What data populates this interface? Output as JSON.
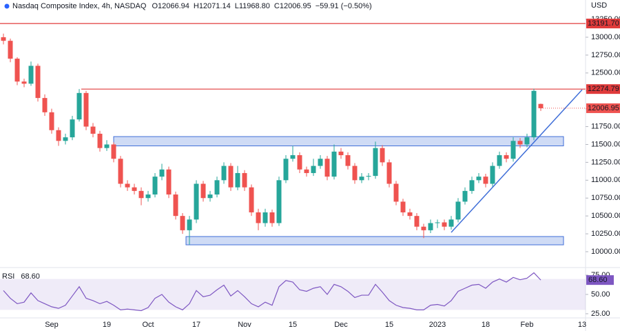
{
  "chart_data": [
    {
      "type": "candlestick",
      "title": "Nasdaq Composite Index, 4h, NASDAQ",
      "legend_values": [
        "O12066.94",
        "H12071.14",
        "L11968.80",
        "C12006.95",
        "−59.91 (−0.50%)"
      ],
      "currency": "USD",
      "categories": [
        null,
        null,
        null,
        null,
        null,
        null,
        null,
        "Sep",
        null,
        null,
        null,
        null,
        null,
        null,
        null,
        "19",
        null,
        null,
        null,
        null,
        null,
        "Oct",
        null,
        null,
        null,
        null,
        null,
        null,
        "17",
        null,
        null,
        null,
        null,
        null,
        null,
        "Nov",
        null,
        null,
        null,
        null,
        null,
        null,
        "15",
        null,
        null,
        null,
        null,
        null,
        null,
        "Dec",
        null,
        null,
        null,
        null,
        null,
        null,
        "15",
        null,
        null,
        null,
        null,
        null,
        null,
        "2023",
        null,
        null,
        null,
        null,
        null,
        null,
        "18",
        null,
        null,
        null,
        null,
        null,
        "Feb",
        null,
        null,
        null,
        null,
        null,
        null,
        null,
        "13"
      ],
      "open": [
        13000,
        12950,
        12700,
        12380,
        12350,
        12600,
        12150,
        11950,
        11700,
        11550,
        11600,
        11850,
        12220,
        11750,
        11650,
        11450,
        11500,
        11300,
        10950,
        10900,
        10850,
        10750,
        10800,
        11050,
        11150,
        10800,
        10500,
        10300,
        10450,
        10950,
        10750,
        10800,
        11000,
        11200,
        10900,
        11100,
        10900,
        10550,
        10400,
        10550,
        10400,
        11000,
        11300,
        11350,
        11150,
        11100,
        11200,
        11300,
        11050,
        11400,
        11350,
        11200,
        11000,
        11050,
        11060,
        11450,
        11250,
        10950,
        10700,
        10550,
        10500,
        10350,
        10300,
        10400,
        10410,
        10350,
        10450,
        10700,
        10850,
        11000,
        11050,
        10950,
        11200,
        11350,
        11300,
        11550,
        11500,
        11600,
        12066.94,
        null,
        null,
        null,
        null,
        null,
        null
      ],
      "high": [
        13050,
        12980,
        12720,
        12420,
        12660,
        12630,
        12200,
        12000,
        11740,
        11650,
        11900,
        12275,
        12250,
        11800,
        11690,
        11560,
        11530,
        11340,
        11000,
        10950,
        10900,
        10850,
        11100,
        11230,
        11190,
        10840,
        10540,
        10500,
        11000,
        10990,
        10850,
        11050,
        11250,
        11240,
        11200,
        11140,
        10940,
        10600,
        10600,
        10590,
        11050,
        11350,
        11480,
        11390,
        11190,
        11300,
        11350,
        11340,
        11500,
        11450,
        11390,
        11240,
        11100,
        11100,
        11540,
        11490,
        11290,
        10990,
        10740,
        10600,
        10540,
        10390,
        10450,
        10450,
        10450,
        10500,
        10750,
        10900,
        11050,
        11100,
        11090,
        11250,
        11400,
        11390,
        11600,
        11590,
        11650,
        12280,
        12071.14,
        null,
        null,
        null,
        null,
        null,
        null
      ],
      "low": [
        12900,
        12650,
        12330,
        12300,
        12320,
        12100,
        11900,
        11650,
        11480,
        11500,
        11560,
        11820,
        11700,
        11600,
        11400,
        11410,
        11250,
        10900,
        10850,
        10800,
        10650,
        10700,
        10760,
        11000,
        10750,
        10450,
        10250,
        10100,
        10400,
        10700,
        10700,
        10760,
        10950,
        10850,
        10860,
        10850,
        10500,
        10300,
        10350,
        10350,
        10360,
        10960,
        11260,
        11100,
        11050,
        11060,
        11160,
        11000,
        11010,
        11300,
        11150,
        10950,
        10960,
        11000,
        11020,
        11200,
        10900,
        10650,
        10500,
        10450,
        10300,
        10190,
        10260,
        10330,
        10300,
        10310,
        10410,
        10660,
        10810,
        10960,
        10900,
        10910,
        11160,
        11250,
        11260,
        11450,
        11460,
        11560,
        11968.8,
        null,
        null,
        null,
        null,
        null,
        null
      ],
      "close": [
        12950,
        12700,
        12380,
        12350,
        12600,
        12150,
        11950,
        11700,
        11550,
        11600,
        11850,
        12220,
        11750,
        11650,
        11450,
        11500,
        11300,
        10950,
        10900,
        10850,
        10750,
        10800,
        11050,
        11150,
        10800,
        10500,
        10300,
        10450,
        10950,
        10750,
        10800,
        11000,
        11200,
        10900,
        11100,
        10900,
        10550,
        10400,
        10550,
        10400,
        11000,
        11300,
        11350,
        11150,
        11100,
        11200,
        11300,
        11050,
        11400,
        11350,
        11200,
        11000,
        11050,
        11060,
        11450,
        11250,
        10950,
        10700,
        10550,
        10500,
        10350,
        10300,
        10400,
        10410,
        10350,
        10450,
        10700,
        10850,
        11000,
        11050,
        10950,
        11200,
        11350,
        11300,
        11550,
        11500,
        11600,
        12250,
        12006.95,
        null,
        null,
        null,
        null,
        null,
        null
      ],
      "up_color": "#26a69a",
      "down_color": "#ef5350",
      "ylim": [
        9807,
        13376
      ],
      "yticks": [
        {
          "value": 10000,
          "label": "10000.00"
        },
        {
          "value": 10250,
          "label": "10250.00"
        },
        {
          "value": 10500,
          "label": "10500.00"
        },
        {
          "value": 10750,
          "label": "10750.00"
        },
        {
          "value": 11000,
          "label": "11000.00"
        },
        {
          "value": 11250,
          "label": "11250.00"
        },
        {
          "value": 11500,
          "label": "11500.00"
        },
        {
          "value": 11750,
          "label": "11750.00"
        },
        {
          "value": 12000,
          "label": "12000.00"
        },
        {
          "value": 12250,
          "label": "12250.00"
        },
        {
          "value": 12500,
          "label": "12500.00"
        },
        {
          "value": 12750,
          "label": "12750.00"
        },
        {
          "value": 13000,
          "label": "13000.00"
        },
        {
          "value": 13250,
          "label": "13250.00"
        }
      ],
      "levels": [
        {
          "value": 13191.7,
          "label": "13191.70",
          "from": -0.5,
          "color": "#e03b3b"
        },
        {
          "value": 12274.79,
          "label": "12274.79",
          "from": 11.3,
          "color": "#e03b3b"
        }
      ],
      "last_price": {
        "value": 12006.95,
        "label": "12006.95",
        "color": "#ef5350"
      },
      "zones": [
        {
          "x": [
            16,
            81.3
          ],
          "y": [
            11480,
            11610
          ],
          "color": "#3f6ed8"
        },
        {
          "x": [
            26.5,
            81.3
          ],
          "y": [
            10096,
            10212
          ],
          "color": "#3f6ed8"
        }
      ],
      "trendline": {
        "x": [
          65,
          84
        ],
        "y": [
          10270,
          12266
        ],
        "color": "#3f6ed8"
      }
    },
    {
      "type": "line",
      "title": "RSI",
      "color": "#7e57c2",
      "values": [
        55,
        45,
        38,
        40,
        52,
        42,
        38,
        34,
        32,
        36,
        48,
        60,
        45,
        42,
        38,
        41,
        36,
        30,
        31,
        30,
        29,
        33,
        45,
        50,
        40,
        34,
        30,
        38,
        55,
        47,
        49,
        56,
        62,
        48,
        55,
        47,
        38,
        34,
        40,
        36,
        60,
        68,
        66,
        56,
        54,
        58,
        60,
        50,
        63,
        60,
        54,
        46,
        49,
        49,
        63,
        53,
        42,
        36,
        33,
        32,
        30,
        30,
        36,
        37,
        35,
        42,
        54,
        58,
        62,
        63,
        58,
        66,
        70,
        66,
        72,
        69,
        71,
        78,
        68.6,
        null,
        null,
        null,
        null,
        null,
        null
      ],
      "value_label": "68.60",
      "band": [
        30,
        70
      ],
      "ylim": [
        20.5,
        83
      ],
      "yticks": [
        {
          "value": 25,
          "label": "25.00"
        },
        {
          "value": 50,
          "label": "50.00"
        },
        {
          "value": 75,
          "label": "75.00"
        }
      ]
    }
  ]
}
